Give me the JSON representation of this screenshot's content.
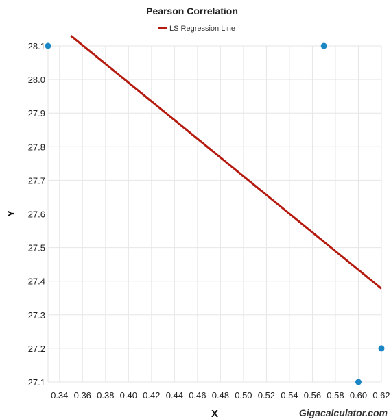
{
  "chart_data": {
    "type": "scatter",
    "title": "Pearson Correlation",
    "xlabel": "X",
    "ylabel": "Y",
    "xlim": [
      0.33,
      0.62
    ],
    "ylim": [
      27.1,
      28.1
    ],
    "x_ticks": [
      "0.34",
      "0.36",
      "0.38",
      "0.40",
      "0.42",
      "0.44",
      "0.46",
      "0.48",
      "0.50",
      "0.52",
      "0.54",
      "0.56",
      "0.58",
      "0.60",
      "0.62"
    ],
    "y_ticks": [
      "27.1",
      "27.2",
      "27.3",
      "27.4",
      "27.5",
      "27.6",
      "27.7",
      "27.8",
      "27.9",
      "28.0",
      "28.1"
    ],
    "grid": true,
    "legend_position": "top-center",
    "series": [
      {
        "name": "LS Regression Line",
        "type": "line",
        "color": "#b51a0f",
        "points": [
          [
            0.35,
            28.13
          ],
          [
            0.62,
            27.378
          ]
        ]
      },
      {
        "type": "scatter",
        "color": "#1a86c4",
        "points": [
          [
            0.33,
            28.1
          ],
          [
            0.57,
            28.1
          ],
          [
            0.62,
            27.2
          ],
          [
            0.6,
            27.1
          ]
        ]
      }
    ]
  },
  "watermark": "Gigacalculator.com"
}
